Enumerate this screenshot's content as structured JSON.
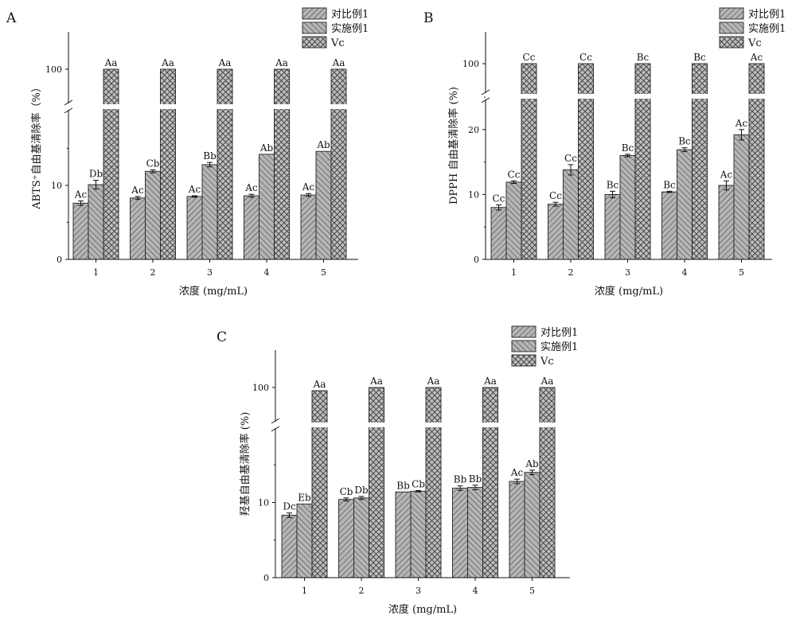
{
  "chart_data": [
    {
      "type": "bar",
      "panel": "A",
      "ylabel": "ABTS⁺自由基清除率（%）",
      "xlabel": "浓度 (mg/mL)",
      "categories": [
        "1",
        "2",
        "3",
        "4",
        "5"
      ],
      "y_break": {
        "lower": [
          0,
          20
        ],
        "upper_tick": 100
      },
      "yticks_lower": [
        0,
        10
      ],
      "series": [
        {
          "name": "对比例1",
          "values": [
            7.6,
            8.3,
            8.5,
            8.6,
            8.7
          ],
          "errors": [
            0.3,
            0.2,
            0.1,
            0.2,
            0.2
          ],
          "labels": [
            "Ac",
            "Ac",
            "Ac",
            "Ac",
            "Ac"
          ]
        },
        {
          "name": "实施例1",
          "values": [
            10.1,
            11.9,
            12.8,
            14.2,
            14.6
          ],
          "errors": [
            0.6,
            0.2,
            0.3,
            0.0,
            0.0
          ],
          "labels": [
            "Db",
            "Cb",
            "Bb",
            "Ab",
            "Ab"
          ]
        },
        {
          "name": "Vc",
          "values": [
            100,
            100,
            100,
            100,
            100
          ],
          "errors": [
            0,
            0,
            0,
            0,
            0
          ],
          "labels": [
            "Aa",
            "Aa",
            "Aa",
            "Aa",
            "Aa"
          ]
        }
      ]
    },
    {
      "type": "bar",
      "panel": "B",
      "ylabel": "DPPH 自由基清除率 (%)",
      "xlabel": "浓度 (mg/mL)",
      "categories": [
        "1",
        "2",
        "3",
        "4",
        "5"
      ],
      "y_break": {
        "lower": [
          0,
          25.5
        ],
        "upper_tick": 100
      },
      "yticks_lower": [
        0,
        10,
        20
      ],
      "series": [
        {
          "name": "对比例1",
          "values": [
            8.0,
            8.5,
            10.0,
            10.4,
            11.4
          ],
          "errors": [
            0.4,
            0.3,
            0.5,
            0.1,
            0.7
          ],
          "labels": [
            "Cc",
            "Cc",
            "Bc",
            "Bc",
            "Ac"
          ]
        },
        {
          "name": "实施例1",
          "values": [
            11.9,
            13.8,
            16.0,
            16.9,
            19.2
          ],
          "errors": [
            0.2,
            0.8,
            0.2,
            0.3,
            0.8
          ],
          "labels": [
            "Cc",
            "Cc",
            "Bc",
            "Bc",
            "Ac"
          ]
        },
        {
          "name": "Vc",
          "values": [
            100,
            100,
            100,
            100,
            100
          ],
          "errors": [
            0,
            0,
            0,
            0,
            0
          ],
          "labels": [
            "Cc",
            "Cc",
            "Bc",
            "Bc",
            "Ac"
          ]
        }
      ]
    },
    {
      "type": "bar",
      "panel": "C",
      "ylabel": "羟基自由基清除率 (%)",
      "xlabel": "浓度 (mg/mL)",
      "categories": [
        "1",
        "2",
        "3",
        "4",
        "5"
      ],
      "y_break": {
        "lower": [
          0,
          20
        ],
        "upper_tick": 100
      },
      "yticks_lower": [
        0,
        10
      ],
      "series": [
        {
          "name": "对比例1",
          "values": [
            8.3,
            10.4,
            11.4,
            11.9,
            12.8
          ],
          "errors": [
            0.3,
            0.2,
            0.0,
            0.3,
            0.3
          ],
          "labels": [
            "Dc",
            "Cb",
            "Bb",
            "Bb",
            "Ac"
          ]
        },
        {
          "name": "实施例1",
          "values": [
            9.8,
            10.6,
            11.5,
            12.0,
            14.0
          ],
          "errors": [
            0.0,
            0.2,
            0.1,
            0.3,
            0.3
          ],
          "labels": [
            "Eb",
            "Db",
            "Cb",
            "Bb",
            "Ab"
          ]
        },
        {
          "name": "Vc",
          "values": [
            96,
            100,
            100,
            100,
            100
          ],
          "errors": [
            0,
            0,
            0,
            0,
            0
          ],
          "labels": [
            "Aa",
            "Aa",
            "Aa",
            "Aa",
            "Aa"
          ]
        }
      ]
    }
  ]
}
